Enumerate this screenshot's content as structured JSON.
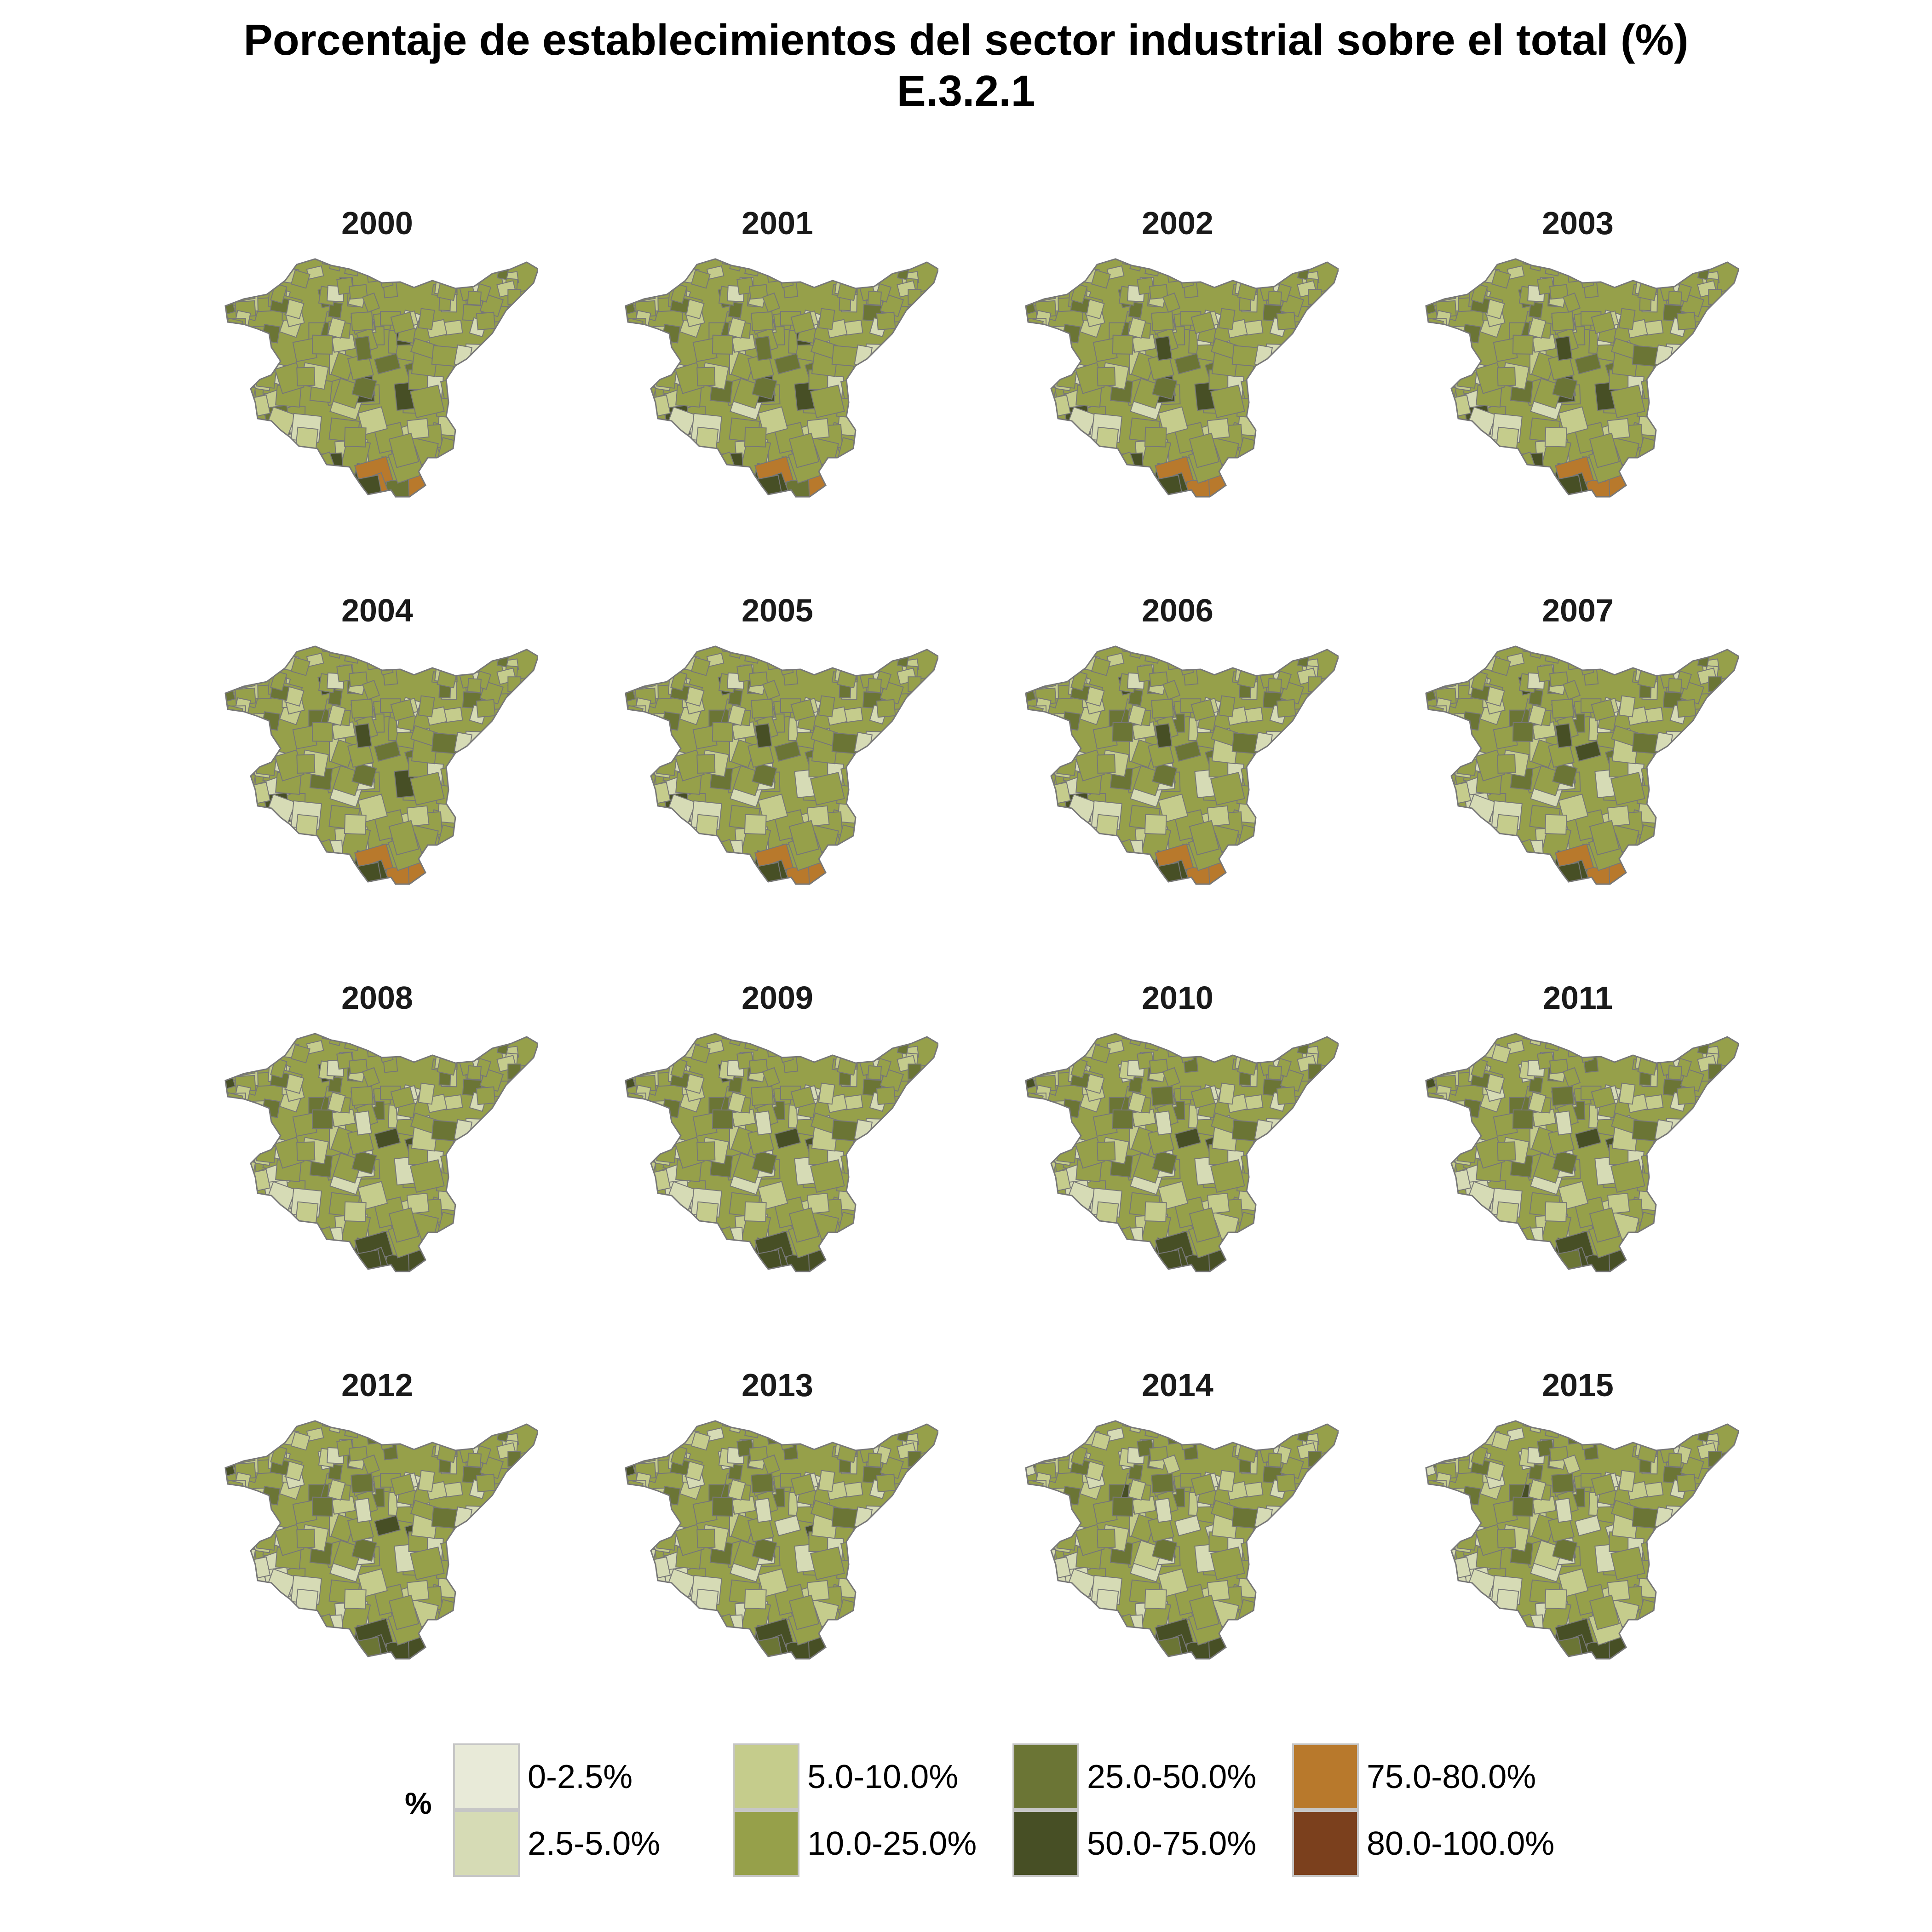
{
  "title": {
    "line1": "Porcentaje de establecimientos del sector industrial sobre el total (%)",
    "line2": "E.3.2.1"
  },
  "panels": [
    {
      "year": "2000"
    },
    {
      "year": "2001"
    },
    {
      "year": "2002"
    },
    {
      "year": "2003"
    },
    {
      "year": "2004"
    },
    {
      "year": "2005"
    },
    {
      "year": "2006"
    },
    {
      "year": "2007"
    },
    {
      "year": "2008"
    },
    {
      "year": "2009"
    },
    {
      "year": "2010"
    },
    {
      "year": "2011"
    },
    {
      "year": "2012"
    },
    {
      "year": "2013"
    },
    {
      "year": "2014"
    },
    {
      "year": "2015"
    }
  ],
  "legend": {
    "title": "%",
    "items": [
      {
        "label": "0-2.5%",
        "color": "#e8ead8"
      },
      {
        "label": "2.5-5.0%",
        "color": "#d6dbb5"
      },
      {
        "label": "5.0-10.0%",
        "color": "#c5cc8c"
      },
      {
        "label": "10.0-25.0%",
        "color": "#96a04a"
      },
      {
        "label": "25.0-50.0%",
        "color": "#6b7535"
      },
      {
        "label": "50.0-75.0%",
        "color": "#474f25"
      },
      {
        "label": "75.0-80.0%",
        "color": "#b8792c"
      },
      {
        "label": "80.0-100.0%",
        "color": "#7b401d"
      }
    ]
  },
  "map_style": {
    "border_color": "#777777",
    "highlight_color": "#b8792c"
  }
}
